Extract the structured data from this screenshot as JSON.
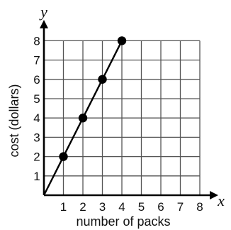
{
  "chart_data": {
    "type": "line",
    "x_ticks": [
      "1",
      "2",
      "3",
      "4",
      "5",
      "6",
      "7",
      "8"
    ],
    "y_ticks": [
      "1",
      "2",
      "3",
      "4",
      "5",
      "6",
      "7",
      "8"
    ],
    "xlim": [
      0,
      8
    ],
    "ylim": [
      0,
      8
    ],
    "grid": true,
    "xlabel": "number of packs",
    "ylabel": "cost (dollars)",
    "x_axis_letter": "x",
    "y_axis_letter": "y",
    "series": [
      {
        "x": [
          0,
          1,
          2,
          3,
          4
        ],
        "y": [
          0,
          2,
          4,
          6,
          8
        ],
        "markers": [
          false,
          true,
          true,
          true,
          true
        ],
        "color": "#000000"
      }
    ]
  }
}
